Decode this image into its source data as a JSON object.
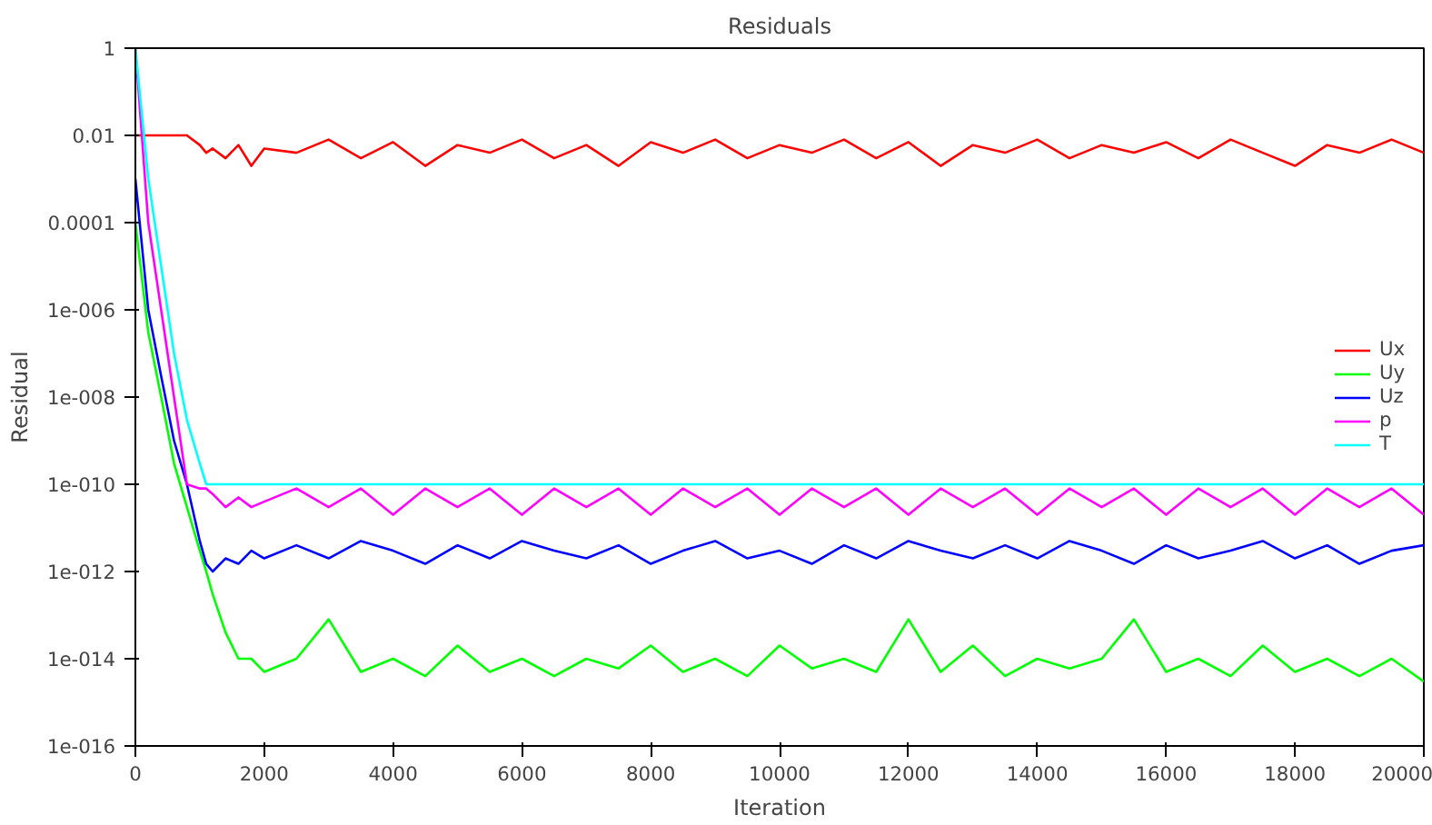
{
  "chart_data": {
    "type": "line",
    "title": "Residuals",
    "xlabel": "Iteration",
    "ylabel": "Residual",
    "x": [
      0,
      200,
      400,
      600,
      800,
      1000,
      1100,
      1200,
      1400,
      1600,
      1800,
      2000,
      2500,
      3000,
      3500,
      4000,
      4500,
      5000,
      5500,
      6000,
      6500,
      7000,
      7500,
      8000,
      8500,
      9000,
      9500,
      10000,
      10500,
      11000,
      11500,
      12000,
      12500,
      13000,
      13500,
      14000,
      14500,
      15000,
      15500,
      16000,
      16500,
      17000,
      17500,
      18000,
      18500,
      19000,
      19500,
      20000
    ],
    "series": [
      {
        "name": "Ux",
        "color": "#ff0000",
        "values": [
          0.01,
          0.01,
          0.01,
          0.01,
          0.01,
          0.006,
          0.004,
          0.005,
          0.003,
          0.006,
          0.002,
          0.005,
          0.004,
          0.008,
          0.003,
          0.007,
          0.002,
          0.006,
          0.004,
          0.008,
          0.003,
          0.006,
          0.002,
          0.007,
          0.004,
          0.008,
          0.003,
          0.006,
          0.004,
          0.008,
          0.003,
          0.007,
          0.002,
          0.006,
          0.004,
          0.008,
          0.003,
          0.006,
          0.004,
          0.007,
          0.003,
          0.008,
          0.004,
          0.002,
          0.006,
          0.004,
          0.008,
          0.004
        ]
      },
      {
        "name": "Uy",
        "color": "#00ff00",
        "values": [
          0.0001,
          3e-07,
          1e-08,
          3e-10,
          3e-11,
          3e-12,
          1e-12,
          3e-13,
          4e-14,
          1e-14,
          1e-14,
          5e-15,
          1e-14,
          8e-14,
          5e-15,
          1e-14,
          4e-15,
          2e-14,
          5e-15,
          1e-14,
          4e-15,
          1e-14,
          6e-15,
          2e-14,
          5e-15,
          1e-14,
          4e-15,
          2e-14,
          6e-15,
          1e-14,
          5e-15,
          8e-14,
          5e-15,
          2e-14,
          4e-15,
          1e-14,
          6e-15,
          1e-14,
          8e-14,
          5e-15,
          1e-14,
          4e-15,
          2e-14,
          5e-15,
          1e-14,
          4e-15,
          1e-14,
          3e-15
        ]
      },
      {
        "name": "Uz",
        "color": "#0000ff",
        "values": [
          0.001,
          1e-06,
          3e-08,
          1e-09,
          1e-10,
          5e-12,
          1.5e-12,
          1e-12,
          2e-12,
          1.5e-12,
          3e-12,
          2e-12,
          4e-12,
          2e-12,
          5e-12,
          3e-12,
          1.5e-12,
          4e-12,
          2e-12,
          5e-12,
          3e-12,
          2e-12,
          4e-12,
          1.5e-12,
          3e-12,
          5e-12,
          2e-12,
          3e-12,
          1.5e-12,
          4e-12,
          2e-12,
          5e-12,
          3e-12,
          2e-12,
          4e-12,
          2e-12,
          5e-12,
          3e-12,
          1.5e-12,
          4e-12,
          2e-12,
          3e-12,
          5e-12,
          2e-12,
          4e-12,
          1.5e-12,
          3e-12,
          4e-12
        ]
      },
      {
        "name": "p",
        "color": "#ff00ff",
        "values": [
          1,
          0.0001,
          1e-06,
          1e-08,
          1e-10,
          8e-11,
          8e-11,
          6e-11,
          3e-11,
          5e-11,
          3e-11,
          4e-11,
          8e-11,
          3e-11,
          8e-11,
          2e-11,
          8e-11,
          3e-11,
          8e-11,
          2e-11,
          8e-11,
          3e-11,
          8e-11,
          2e-11,
          8e-11,
          3e-11,
          8e-11,
          2e-11,
          8e-11,
          3e-11,
          8e-11,
          2e-11,
          8e-11,
          3e-11,
          8e-11,
          2e-11,
          8e-11,
          3e-11,
          8e-11,
          2e-11,
          8e-11,
          3e-11,
          8e-11,
          2e-11,
          8e-11,
          3e-11,
          8e-11,
          2e-11
        ]
      },
      {
        "name": "T",
        "color": "#00ffff",
        "values": [
          1,
          0.001,
          1e-05,
          1e-07,
          3e-09,
          3e-10,
          1e-10,
          1e-10,
          1e-10,
          1e-10,
          1e-10,
          1e-10,
          1e-10,
          1e-10,
          1e-10,
          1e-10,
          1e-10,
          1e-10,
          1e-10,
          1e-10,
          1e-10,
          1e-10,
          1e-10,
          1e-10,
          1e-10,
          1e-10,
          1e-10,
          1e-10,
          1e-10,
          1e-10,
          1e-10,
          1e-10,
          1e-10,
          1e-10,
          1e-10,
          1e-10,
          1e-10,
          1e-10,
          1e-10,
          1e-10,
          1e-10,
          1e-10,
          1e-10,
          1e-10,
          1e-10,
          1e-10,
          1e-10,
          1e-10
        ]
      }
    ],
    "log": "y",
    "grid": false,
    "legend": "right",
    "xlim": [
      0,
      20000
    ],
    "xticks": [
      0,
      2000,
      4000,
      6000,
      8000,
      10000,
      12000,
      14000,
      16000,
      18000,
      20000
    ],
    "ylim": [
      1e-16,
      1
    ],
    "yticks": [
      {
        "value": 1e-16,
        "label": "1e-016"
      },
      {
        "value": 1e-14,
        "label": "1e-014"
      },
      {
        "value": 1e-12,
        "label": "1e-012"
      },
      {
        "value": 1e-10,
        "label": "1e-010"
      },
      {
        "value": 1e-08,
        "label": "1e-008"
      },
      {
        "value": 1e-06,
        "label": "1e-006"
      },
      0.0001,
      0.01,
      1
    ]
  }
}
